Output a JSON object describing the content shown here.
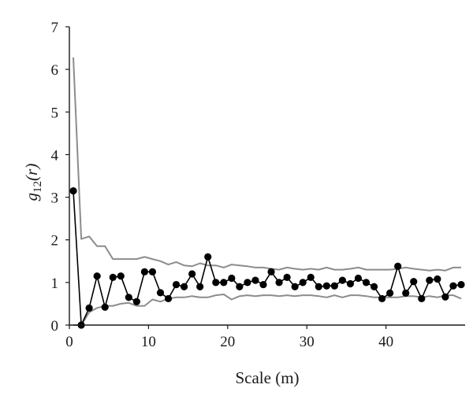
{
  "chart_data": {
    "type": "line",
    "title": "",
    "xlabel": "Scale (m)",
    "ylabel": "g12(r)",
    "ylabel_parts": {
      "main": "g",
      "sub": "12",
      "arg": "(r)"
    },
    "xlim": [
      0,
      50
    ],
    "ylim": [
      0,
      7
    ],
    "xticks": [
      0,
      10,
      20,
      30,
      40
    ],
    "yticks": [
      0,
      1,
      2,
      3,
      4,
      5,
      6,
      7
    ],
    "grid": false,
    "legend": "none",
    "colors": {
      "observed": "#000000",
      "envelope": "#8c8c8c",
      "axis": "#1a1a1a"
    },
    "x": [
      0.5,
      1.5,
      2.5,
      3.5,
      4.5,
      5.5,
      6.5,
      7.5,
      8.5,
      9.5,
      10.5,
      11.5,
      12.5,
      13.5,
      14.5,
      15.5,
      16.5,
      17.5,
      18.5,
      19.5,
      20.5,
      21.5,
      22.5,
      23.5,
      24.5,
      25.5,
      26.5,
      27.5,
      28.5,
      29.5,
      30.5,
      31.5,
      32.5,
      33.5,
      34.5,
      35.5,
      36.5,
      37.5,
      38.5,
      39.5,
      40.5,
      41.5,
      42.5,
      43.5,
      44.5,
      45.5,
      46.5,
      47.5,
      48.5,
      49.5
    ],
    "series": [
      {
        "role": "observed",
        "style": "line-markers",
        "values": [
          3.15,
          0.0,
          0.4,
          1.15,
          0.42,
          1.12,
          1.15,
          0.65,
          0.55,
          1.25,
          1.25,
          0.76,
          0.62,
          0.95,
          0.9,
          1.2,
          0.9,
          1.6,
          1.0,
          1.0,
          1.1,
          0.9,
          1.0,
          1.05,
          0.95,
          1.25,
          1.0,
          1.12,
          0.9,
          1.0,
          1.12,
          0.9,
          0.92,
          0.92,
          1.05,
          0.97,
          1.1,
          1.0,
          0.9,
          0.62,
          0.75,
          1.38,
          0.75,
          1.02,
          0.62,
          1.05,
          1.08,
          0.66,
          0.92,
          0.95
        ]
      },
      {
        "role": "upper-envelope",
        "style": "line",
        "values": [
          6.28,
          2.02,
          2.08,
          1.85,
          1.85,
          1.55,
          1.55,
          1.55,
          1.55,
          1.6,
          1.55,
          1.5,
          1.42,
          1.48,
          1.4,
          1.38,
          1.45,
          1.4,
          1.4,
          1.35,
          1.42,
          1.4,
          1.38,
          1.35,
          1.35,
          1.32,
          1.3,
          1.35,
          1.32,
          1.3,
          1.32,
          1.3,
          1.35,
          1.3,
          1.3,
          1.32,
          1.35,
          1.3,
          1.3,
          1.3,
          1.3,
          1.32,
          1.35,
          1.32,
          1.3,
          1.28,
          1.3,
          1.28,
          1.35,
          1.35
        ]
      },
      {
        "role": "lower-envelope",
        "style": "line",
        "values": [
          0.0,
          0.0,
          0.3,
          0.4,
          0.45,
          0.45,
          0.5,
          0.52,
          0.45,
          0.45,
          0.6,
          0.55,
          0.62,
          0.65,
          0.65,
          0.68,
          0.65,
          0.65,
          0.7,
          0.72,
          0.6,
          0.68,
          0.7,
          0.68,
          0.7,
          0.7,
          0.68,
          0.7,
          0.68,
          0.7,
          0.7,
          0.68,
          0.65,
          0.7,
          0.65,
          0.7,
          0.7,
          0.68,
          0.65,
          0.65,
          0.65,
          0.65,
          0.68,
          0.68,
          0.65,
          0.68,
          0.65,
          0.7,
          0.7,
          0.62
        ]
      }
    ]
  }
}
